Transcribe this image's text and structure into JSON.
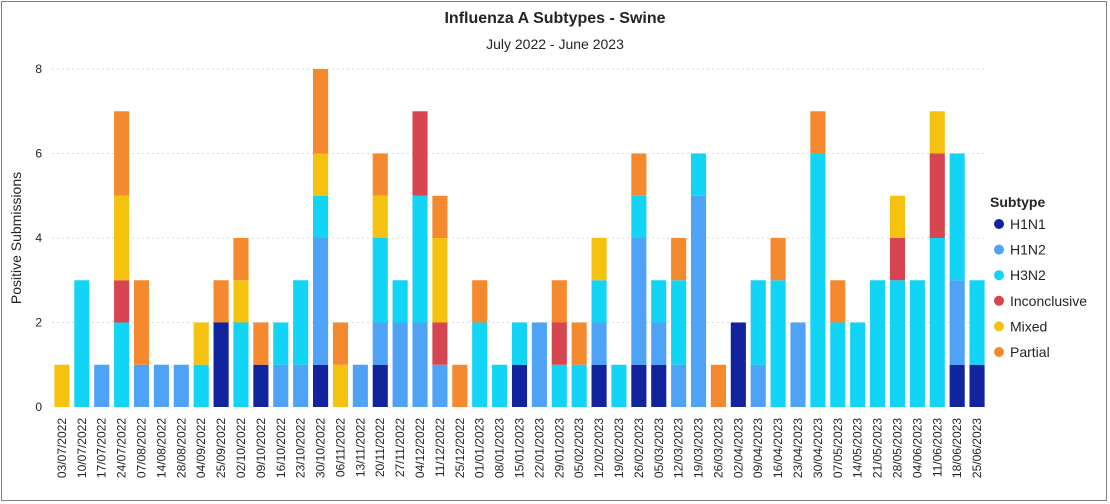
{
  "chart_data": {
    "type": "bar",
    "stacked": true,
    "title": "Influenza A Subtypes - Swine",
    "subtitle": "July 2022 - June 2023",
    "xlabel": "",
    "ylabel": "Positive Submissions",
    "ylim": [
      0,
      8
    ],
    "yticks": [
      0,
      2,
      4,
      6,
      8
    ],
    "grid": true,
    "legend_title": "Subtype",
    "legend_position": "right",
    "categories": [
      "03/07/2022",
      "10/07/2022",
      "17/07/2022",
      "24/07/2022",
      "07/08/2022",
      "14/08/2022",
      "28/08/2022",
      "04/09/2022",
      "25/09/2022",
      "02/10/2022",
      "09/10/2022",
      "16/10/2022",
      "23/10/2022",
      "30/10/2022",
      "06/11/2022",
      "13/11/2022",
      "20/11/2022",
      "27/11/2022",
      "04/12/2022",
      "11/12/2022",
      "25/12/2022",
      "01/01/2023",
      "08/01/2023",
      "15/01/2023",
      "22/01/2023",
      "29/01/2023",
      "05/02/2023",
      "12/02/2023",
      "19/02/2023",
      "26/02/2023",
      "05/03/2023",
      "12/03/2023",
      "19/03/2023",
      "26/03/2023",
      "02/04/2023",
      "09/04/2023",
      "16/04/2023",
      "23/04/2023",
      "30/04/2023",
      "07/05/2023",
      "14/05/2023",
      "21/05/2023",
      "28/05/2023",
      "04/06/2023",
      "11/06/2023",
      "18/06/2023",
      "25/06/2023"
    ],
    "series": [
      {
        "name": "H1N1",
        "color": "#12239e",
        "values": [
          0,
          0,
          0,
          0,
          0,
          0,
          0,
          0,
          2,
          0,
          1,
          0,
          0,
          1,
          0,
          0,
          1,
          0,
          0,
          0,
          0,
          0,
          0,
          1,
          0,
          0,
          0,
          1,
          0,
          1,
          1,
          0,
          0,
          0,
          2,
          0,
          0,
          0,
          0,
          0,
          0,
          0,
          0,
          0,
          0,
          1,
          1
        ]
      },
      {
        "name": "H1N2",
        "color": "#4fa3f7",
        "values": [
          0,
          0,
          1,
          0,
          1,
          1,
          1,
          0,
          0,
          0,
          0,
          1,
          1,
          3,
          0,
          1,
          1,
          2,
          2,
          1,
          0,
          0,
          0,
          0,
          2,
          0,
          0,
          1,
          0,
          3,
          1,
          1,
          5,
          0,
          0,
          1,
          0,
          2,
          0,
          0,
          0,
          0,
          0,
          0,
          0,
          2,
          0
        ]
      },
      {
        "name": "H3N2",
        "color": "#12d4f5",
        "values": [
          0,
          3,
          0,
          2,
          0,
          0,
          0,
          1,
          0,
          2,
          0,
          1,
          2,
          1,
          0,
          0,
          2,
          1,
          3,
          0,
          0,
          2,
          1,
          1,
          0,
          1,
          1,
          1,
          1,
          1,
          1,
          2,
          1,
          0,
          0,
          2,
          3,
          0,
          6,
          2,
          2,
          3,
          3,
          3,
          4,
          3,
          2
        ]
      },
      {
        "name": "Inconclusive",
        "color": "#d64550",
        "values": [
          0,
          0,
          0,
          1,
          0,
          0,
          0,
          0,
          0,
          0,
          0,
          0,
          0,
          0,
          0,
          0,
          0,
          0,
          2,
          1,
          0,
          0,
          0,
          0,
          0,
          1,
          0,
          0,
          0,
          0,
          0,
          0,
          0,
          0,
          0,
          0,
          0,
          0,
          0,
          0,
          0,
          0,
          1,
          0,
          2,
          0,
          0
        ]
      },
      {
        "name": "Mixed",
        "color": "#f5c20f",
        "values": [
          1,
          0,
          0,
          2,
          0,
          0,
          0,
          1,
          0,
          1,
          0,
          0,
          0,
          1,
          1,
          0,
          1,
          0,
          0,
          2,
          0,
          0,
          0,
          0,
          0,
          0,
          0,
          1,
          0,
          0,
          0,
          0,
          0,
          0,
          0,
          0,
          0,
          0,
          0,
          0,
          0,
          0,
          1,
          0,
          1,
          0,
          0
        ]
      },
      {
        "name": "Partial",
        "color": "#f5892e",
        "values": [
          0,
          0,
          0,
          2,
          2,
          0,
          0,
          0,
          1,
          1,
          1,
          0,
          0,
          2,
          1,
          0,
          1,
          0,
          0,
          1,
          1,
          1,
          0,
          0,
          0,
          1,
          1,
          0,
          0,
          1,
          0,
          1,
          0,
          1,
          0,
          0,
          1,
          0,
          1,
          1,
          0,
          0,
          0,
          0,
          0,
          0,
          0
        ]
      }
    ]
  }
}
